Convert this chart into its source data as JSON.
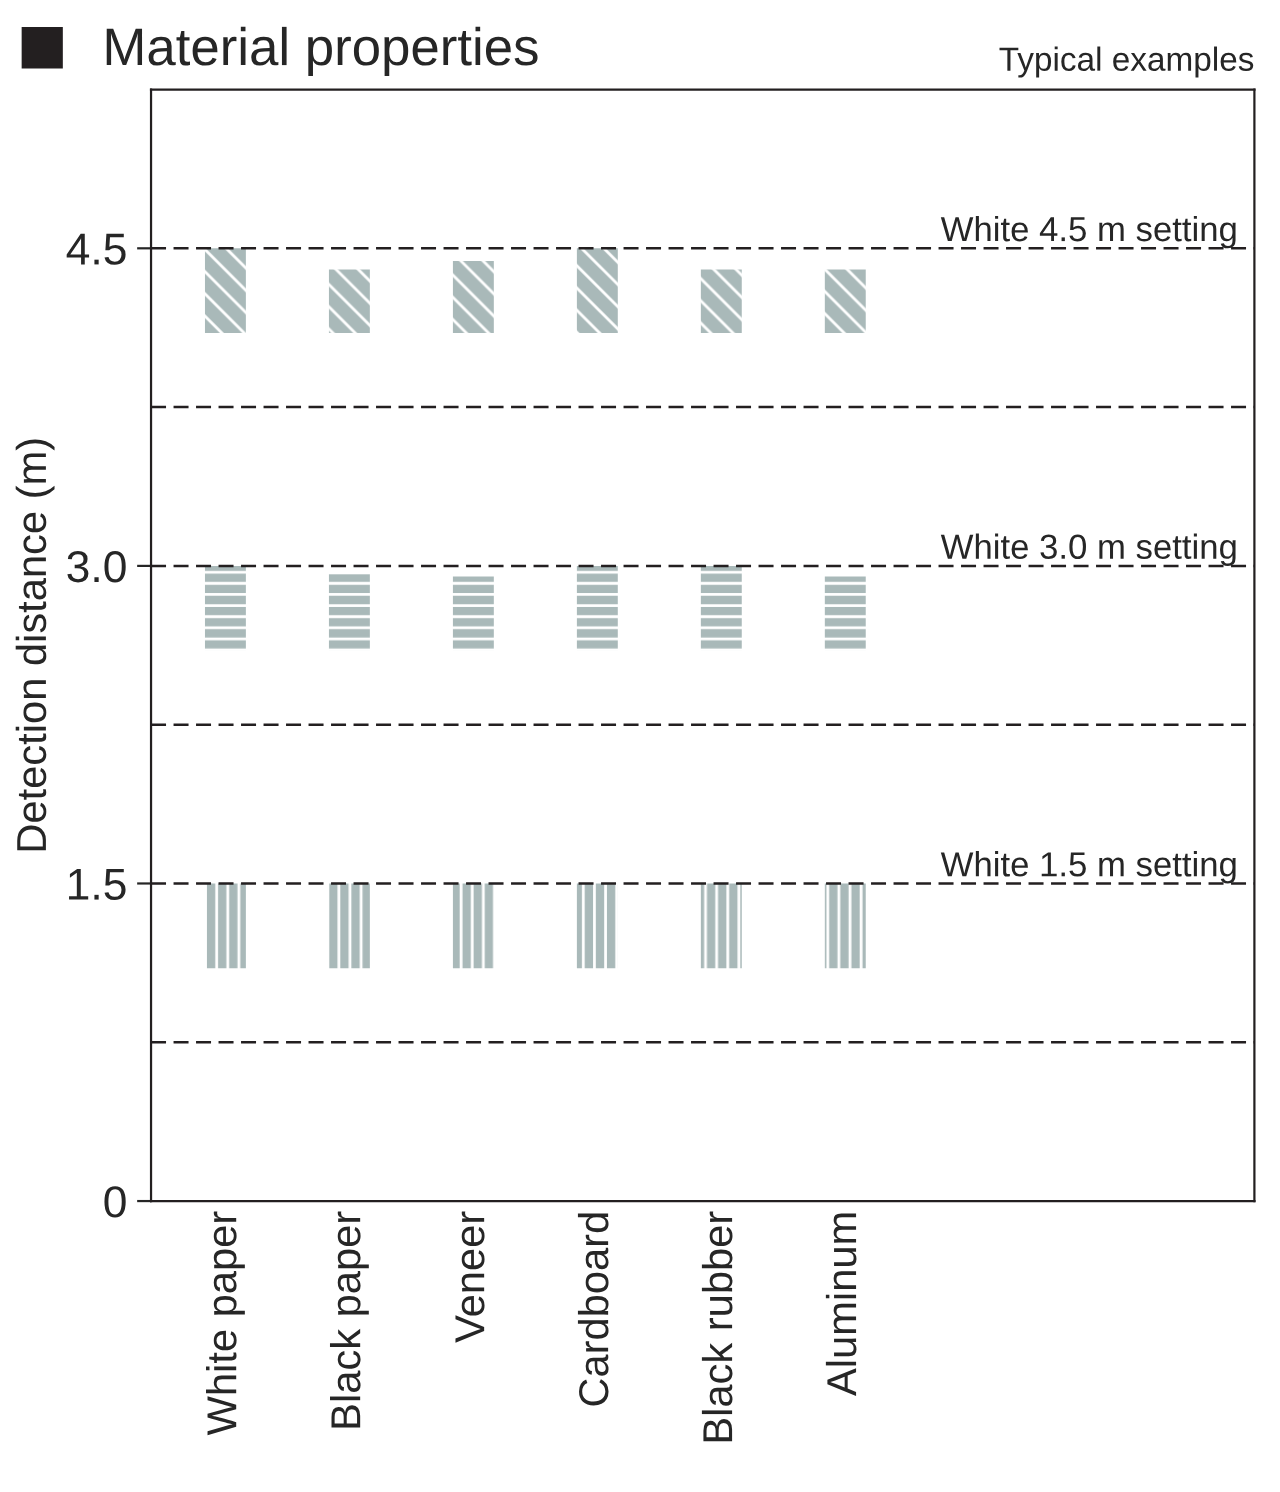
{
  "chart_data": {
    "type": "bar",
    "title": "Material properties",
    "ylabel": "Detection distance (m)",
    "categories": [
      "White paper",
      "Black paper",
      "Veneer",
      "Cardboard",
      "Black rubber",
      "Aluminum"
    ],
    "series": [
      {
        "color": "#a9b9b9",
        "base": [
          1.1,
          1.1,
          1.1,
          1.1,
          1.1,
          1.1
        ],
        "values": [
          0.4,
          0.4,
          0.4,
          0.4,
          0.4,
          0.4
        ]
      },
      {
        "color": "#a9b9b9",
        "base": [
          2.6,
          2.6,
          2.6,
          2.6,
          2.6,
          2.6
        ],
        "values": [
          0.4,
          0.36,
          0.35,
          0.4,
          0.4,
          0.35
        ]
      },
      {
        "color": "#a9b9b9",
        "base": [
          4.1,
          4.1,
          4.1,
          4.1,
          4.1,
          4.1
        ],
        "values": [
          0.4,
          0.3,
          0.34,
          0.4,
          0.3,
          0.3
        ]
      }
    ],
    "ylim": [
      0,
      5.25
    ],
    "yticks": [
      0,
      1.5,
      {
        "value": 3,
        "label": "3.0"
      },
      4.5
    ],
    "grid": false,
    "legend": false,
    "ref_lines": [
      {
        "axis": "y",
        "value": 0.75,
        "label": null,
        "line_style": "dashed",
        "color": "#231f20"
      },
      {
        "axis": "y",
        "value": 1.5,
        "label": "White 1.5 m setting",
        "line_style": "dashed",
        "color": "#231f20"
      },
      {
        "axis": "y",
        "value": 2.25,
        "label": null,
        "line_style": "dashed",
        "color": "#231f20"
      },
      {
        "axis": "y",
        "value": 3,
        "label": "White 3.0 m setting",
        "line_style": "dashed",
        "color": "#231f20"
      },
      {
        "axis": "y",
        "value": 3.75,
        "label": null,
        "line_style": "dashed",
        "color": "#231f20"
      },
      {
        "axis": "y",
        "value": 4.5,
        "label": "White 4.5 m setting",
        "line_style": "dashed",
        "color": "#231f20"
      }
    ],
    "annotations": [
      "Typical examples"
    ]
  }
}
